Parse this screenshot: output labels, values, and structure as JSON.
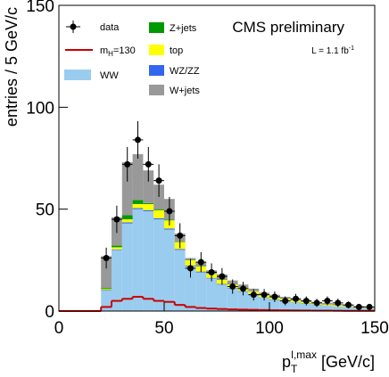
{
  "chart_data": {
    "type": "stacked_histogram",
    "ylabel": "entries / 5 GeV/c",
    "xlabel": {
      "main": "p",
      "sub": "T",
      "sup": "l,max",
      "rest": " [GeV/c]"
    },
    "annotation": "CMS preliminary",
    "lumi": {
      "main": "L = 1.1 fb",
      "sup": "-1"
    },
    "xlim": [
      0,
      150
    ],
    "ylim": [
      0,
      150
    ],
    "xticks": [
      0,
      50,
      100,
      150
    ],
    "yticks": [
      0,
      50,
      100,
      150
    ],
    "bins": [
      20,
      25,
      30,
      35,
      40,
      45,
      50,
      55,
      60,
      65,
      70,
      75,
      80,
      85,
      90,
      95,
      100,
      105,
      110,
      115,
      120,
      125,
      130,
      135,
      140,
      145,
      150
    ],
    "series": [
      {
        "name": "WW",
        "color": "#99ccee",
        "values": [
          10,
          30,
          43,
          50,
          49,
          45,
          40,
          30,
          22,
          19,
          16,
          13,
          11,
          9.5,
          8,
          6.5,
          5.5,
          4.8,
          4,
          3.5,
          3,
          2.6,
          2.2,
          1.9,
          1.6,
          1.3
        ]
      },
      {
        "name": "WZ/ZZ",
        "color": "#3366ee",
        "values": [
          0.3,
          0.3,
          0.5,
          0.5,
          0.5,
          0.5,
          0.5,
          0.4,
          0.4,
          0.4,
          0.3,
          0.3,
          0.3,
          0.3,
          0.3,
          0.2,
          0.2,
          0.2,
          0.2,
          0.2,
          0.2,
          0.1,
          0.1,
          0.1,
          0.1,
          0.1
        ]
      },
      {
        "name": "top",
        "color": "#ffff00",
        "values": [
          0.5,
          1,
          1.5,
          2,
          3,
          4,
          4,
          3.5,
          2.5,
          2.5,
          2,
          2,
          1.8,
          1.5,
          1.3,
          1.2,
          1,
          0.9,
          0.8,
          0.7,
          0.6,
          0.5,
          0.5,
          0.4,
          0.4,
          0.3
        ]
      },
      {
        "name": "Z+jets",
        "color": "#009900",
        "values": [
          0.5,
          0.8,
          2,
          2,
          0.5,
          0.5,
          0.3,
          0.2,
          0.2,
          0.2,
          0.2,
          0.2,
          0.2,
          0.1,
          0.1,
          0.1,
          0.1,
          0.1,
          0.1,
          0.1,
          0.1,
          0.1,
          0.1,
          0.1,
          0.1,
          0.1
        ]
      },
      {
        "name": "W+jets",
        "color": "#999999",
        "values": [
          15.7,
          13.9,
          26,
          22.5,
          16,
          12,
          10.2,
          3.9,
          0.9,
          1.9,
          1.5,
          2.5,
          1.7,
          1.6,
          1.3,
          1,
          1.2,
          1,
          0.9,
          0.5,
          0.6,
          0.7,
          0.6,
          0.5,
          0.3,
          0.2
        ]
      }
    ],
    "signal": {
      "name": {
        "main": "m",
        "sub": "H",
        "rest": "=130"
      },
      "color": "#cc0000",
      "values": [
        2,
        5,
        6,
        7,
        6,
        5,
        4.5,
        3,
        2,
        1.5,
        1.2,
        1,
        0.8,
        0.7,
        0.6,
        0.5,
        0.4,
        0.35,
        0.3,
        0.25,
        0.2,
        0.2,
        0.15,
        0.1,
        0.1,
        0.1
      ]
    },
    "data": {
      "name": "data",
      "color": "#000000",
      "values": [
        26,
        45,
        72,
        84,
        72,
        64,
        49,
        37,
        21,
        24,
        19,
        17,
        12,
        11,
        8,
        8,
        7,
        5,
        6,
        5,
        4,
        5,
        4,
        3,
        2,
        2
      ],
      "errors": [
        5.1,
        6.7,
        8.5,
        9.2,
        8.5,
        8,
        7,
        6.1,
        4.6,
        4.9,
        4.4,
        4.1,
        3.5,
        3.3,
        2.8,
        2.8,
        2.6,
        2.2,
        2.4,
        2.2,
        2,
        2.2,
        2,
        1.7,
        1.4,
        1.4
      ]
    }
  }
}
